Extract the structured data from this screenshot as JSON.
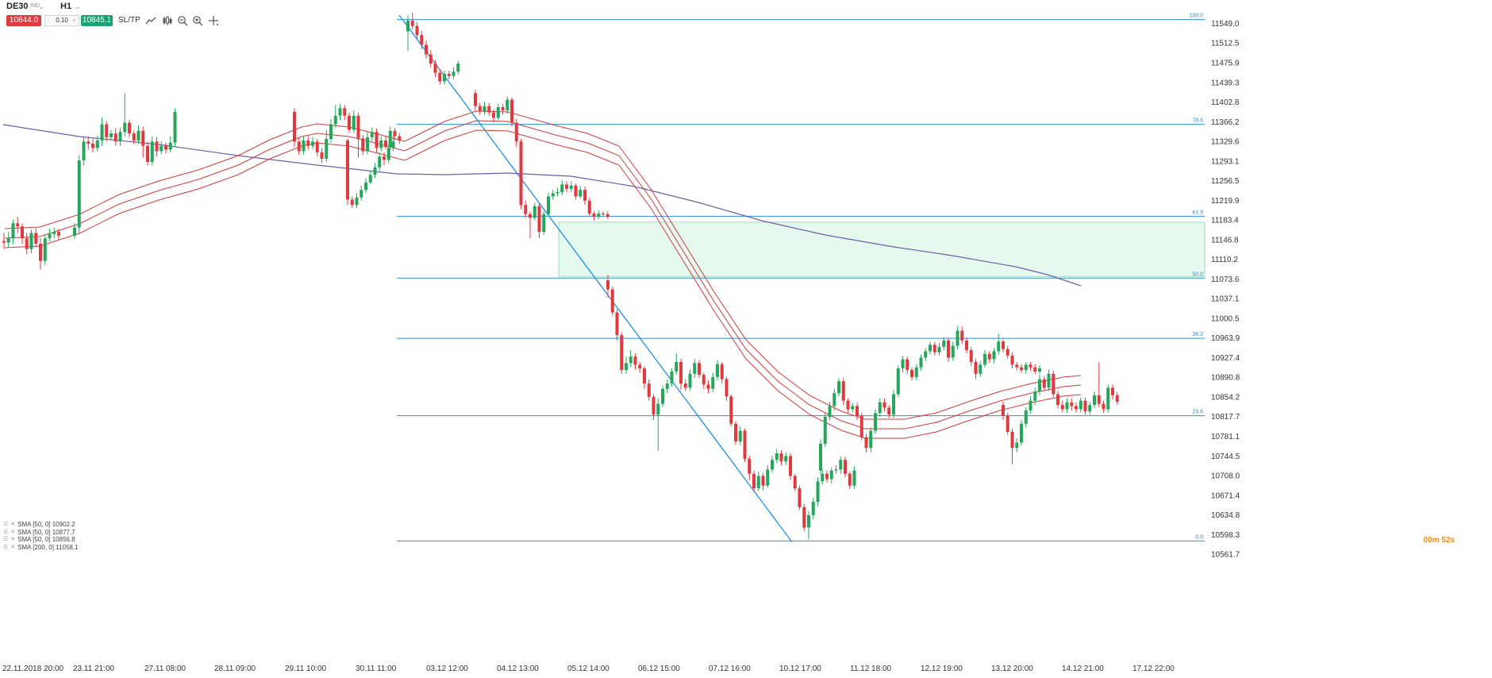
{
  "toolbar": {
    "symbol": "DE30",
    "instrument_type": "IND",
    "timeframe": "H1",
    "sell_price": "10844.0",
    "volume": "0.10",
    "volume_minus": "-",
    "volume_plus": "+",
    "buy_price": "10845.1",
    "sltp_label": "SL/TP",
    "icons": [
      "line-chart-icon",
      "candlestick-icon",
      "zoom-out-icon",
      "zoom-in-icon",
      "crosshair-icon"
    ]
  },
  "colors": {
    "bull": "#26a65b",
    "bear": "#e03a3e",
    "fib": "#2d8fe0",
    "envelope": "#d23a3a",
    "sma200": "#6d5fa8",
    "zone_fill": "#e6f9ef",
    "zone_border": "#9fd9bc",
    "trendline": "#1e90e8"
  },
  "price_axis": {
    "labels": [
      "11549.0",
      "11512.5",
      "11475.9",
      "11439.3",
      "11402.8",
      "11366.2",
      "11329.6",
      "11293.1",
      "11256.5",
      "11219.9",
      "11183.4",
      "11146.8",
      "11110.2",
      "11073.6",
      "11037.1",
      "11000.5",
      "10963.9",
      "10927.4",
      "10890.8",
      "10854.2",
      "10817.7",
      "10781.1",
      "10744.5",
      "10708.0",
      "10671.4",
      "10634.8",
      "10598.3",
      "10561.7"
    ]
  },
  "time_axis": {
    "labels": [
      "22.11.2018 20:00",
      "23.11 21:00",
      "27.11 08:00",
      "28.11 09:00",
      "29.11 10:00",
      "30.11 11:00",
      "03.12 12:00",
      "04.12 13:00",
      "05.12 14:00",
      "06.12 15:00",
      "07.12 16:00",
      "10.12 17:00",
      "11.12 18:00",
      "12.12 19:00",
      "13.12 20:00",
      "14.12 21:00",
      "17.12 22:00"
    ]
  },
  "fib_levels": [
    {
      "label": "100.0",
      "price": 11557.0
    },
    {
      "label": "78.6",
      "price": 11362.0
    },
    {
      "label": "61.9",
      "price": 11191.0
    },
    {
      "label": "50.0",
      "price": 11076.0
    },
    {
      "label": "38.2",
      "price": 10964.0
    },
    {
      "label": "23.6",
      "price": 10820.0
    },
    {
      "label": "0.0",
      "price": 10587.0
    }
  ],
  "zone": {
    "price_top": 11180.0,
    "price_bottom": 11079.0
  },
  "legend": [
    "SMA [50, 0] 10902.2",
    "SMA [50, 0] 10877.7",
    "SMA [50, 0] 10856.8",
    "SMA [200, 0] 11058.1"
  ],
  "timer": "00m 52s",
  "candles": [
    [
      11145,
      11142,
      11160,
      11130
    ],
    [
      11142,
      11150,
      11162,
      11132
    ],
    [
      11150,
      11178,
      11185,
      11140
    ],
    [
      11178,
      11172,
      11190,
      11160
    ],
    [
      11172,
      11150,
      11178,
      11140
    ],
    [
      11150,
      11130,
      11160,
      11120
    ],
    [
      11130,
      11160,
      11166,
      11122
    ],
    [
      11160,
      11140,
      11168,
      11134
    ],
    [
      11140,
      11108,
      11150,
      11092
    ],
    [
      11108,
      11150,
      11156,
      11100
    ],
    [
      11150,
      11158,
      11168,
      11145
    ],
    [
      11158,
      11162,
      11170,
      11150
    ],
    [
      11162,
      11155,
      11168,
      11148
    ],
    [
      11155,
      11170,
      11178,
      11150
    ],
    [
      11170,
      11295,
      11305,
      11160
    ],
    [
      11295,
      11330,
      11340,
      11285
    ],
    [
      11330,
      11326,
      11340,
      11315
    ],
    [
      11326,
      11318,
      11335,
      11310
    ],
    [
      11318,
      11332,
      11340,
      11312
    ],
    [
      11332,
      11362,
      11375,
      11322
    ],
    [
      11362,
      11338,
      11368,
      11330
    ],
    [
      11338,
      11345,
      11352,
      11332
    ],
    [
      11345,
      11330,
      11355,
      11322
    ],
    [
      11330,
      11348,
      11356,
      11322
    ],
    [
      11348,
      11365,
      11420,
      11340
    ],
    [
      11365,
      11345,
      11370,
      11338
    ],
    [
      11345,
      11332,
      11350,
      11325
    ],
    [
      11332,
      11350,
      11360,
      11326
    ],
    [
      11350,
      11322,
      11358,
      11300
    ],
    [
      11322,
      11292,
      11330,
      11285
    ],
    [
      11292,
      11330,
      11340,
      11285
    ],
    [
      11330,
      11312,
      11338,
      11302
    ],
    [
      11312,
      11322,
      11330,
      11306
    ],
    [
      11322,
      11315,
      11328,
      11308
    ],
    [
      11315,
      11328,
      11340,
      11310
    ],
    [
      11328,
      11385,
      11392,
      11320
    ],
    [
      11385,
      11330,
      11392,
      11320
    ],
    [
      11330,
      11312,
      11338,
      11305
    ],
    [
      11312,
      11332,
      11340,
      11306
    ],
    [
      11332,
      11322,
      11340,
      11315
    ],
    [
      11322,
      11330,
      11338,
      11316
    ],
    [
      11330,
      11310,
      11335,
      11302
    ],
    [
      11310,
      11298,
      11318,
      11290
    ],
    [
      11298,
      11335,
      11352,
      11292
    ],
    [
      11335,
      11362,
      11372,
      11328
    ],
    [
      11362,
      11378,
      11398,
      11355
    ],
    [
      11378,
      11392,
      11400,
      11370
    ],
    [
      11392,
      11378,
      11398,
      11370
    ],
    [
      11378,
      11352,
      11384,
      11346
    ],
    [
      11352,
      11378,
      11388,
      11346
    ],
    [
      11378,
      11336,
      11384,
      11300
    ],
    [
      11336,
      11312,
      11342,
      11305
    ],
    [
      11312,
      11338,
      11348,
      11306
    ],
    [
      11338,
      11348,
      11356,
      11330
    ],
    [
      11348,
      11318,
      11354,
      11310
    ],
    [
      11318,
      11332,
      11340,
      11312
    ],
    [
      11332,
      11320,
      11340,
      11316
    ],
    [
      11320,
      11350,
      11358,
      11315
    ],
    [
      11350,
      11340,
      11355,
      11332
    ],
    [
      11340,
      11332,
      11346,
      11326
    ],
    [
      11332,
      11222,
      11336,
      11212
    ],
    [
      11222,
      11212,
      11228,
      11206
    ],
    [
      11212,
      11226,
      11234,
      11206
    ],
    [
      11226,
      11240,
      11248,
      11220
    ],
    [
      11240,
      11254,
      11262,
      11234
    ],
    [
      11254,
      11268,
      11276,
      11250
    ],
    [
      11268,
      11282,
      11290,
      11262
    ],
    [
      11282,
      11302,
      11310,
      11276
    ],
    [
      11302,
      11296,
      11310,
      11286
    ],
    [
      11296,
      11318,
      11326,
      11290
    ],
    [
      11318,
      11330,
      11340,
      11312
    ],
    [
      11535,
      11555,
      11565,
      11498
    ],
    [
      11555,
      11545,
      11570,
      11538
    ],
    [
      11545,
      11528,
      11552,
      11520
    ],
    [
      11528,
      11510,
      11536,
      11502
    ],
    [
      11510,
      11492,
      11518,
      11484
    ],
    [
      11492,
      11475,
      11500,
      11468
    ],
    [
      11475,
      11458,
      11482,
      11450
    ],
    [
      11458,
      11442,
      11465,
      11436
    ],
    [
      11442,
      11456,
      11462,
      11436
    ],
    [
      11456,
      11452,
      11462,
      11446
    ],
    [
      11452,
      11460,
      11468,
      11446
    ],
    [
      11460,
      11475,
      11480,
      11455
    ],
    [
      11420,
      11396,
      11426,
      11388
    ],
    [
      11396,
      11386,
      11402,
      11380
    ],
    [
      11386,
      11396,
      11404,
      11380
    ],
    [
      11396,
      11384,
      11402,
      11378
    ],
    [
      11384,
      11374,
      11390,
      11366
    ],
    [
      11374,
      11394,
      11400,
      11370
    ],
    [
      11394,
      11388,
      11400,
      11380
    ],
    [
      11388,
      11408,
      11414,
      11382
    ],
    [
      11408,
      11365,
      11412,
      11358
    ],
    [
      11365,
      11330,
      11372,
      11320
    ],
    [
      11330,
      11212,
      11335,
      11205
    ],
    [
      11212,
      11195,
      11220,
      11188
    ],
    [
      11195,
      11188,
      11200,
      11150
    ],
    [
      11188,
      11210,
      11216,
      11184
    ],
    [
      11210,
      11162,
      11215,
      11150
    ],
    [
      11162,
      11195,
      11200,
      11156
    ],
    [
      11195,
      11228,
      11235,
      11190
    ],
    [
      11228,
      11234,
      11240,
      11222
    ],
    [
      11234,
      11236,
      11244,
      11228
    ],
    [
      11236,
      11250,
      11258,
      11230
    ],
    [
      11250,
      11242,
      11256,
      11236
    ],
    [
      11242,
      11248,
      11256,
      11236
    ],
    [
      11248,
      11228,
      11252,
      11222
    ],
    [
      11228,
      11240,
      11248,
      11224
    ],
    [
      11240,
      11220,
      11246,
      11212
    ],
    [
      11220,
      11196,
      11226,
      11192
    ],
    [
      11196,
      11190,
      11200,
      11184
    ],
    [
      11190,
      11196,
      11202,
      11186
    ],
    [
      11196,
      11195,
      11200,
      11192
    ],
    [
      11195,
      11190,
      11200,
      11186
    ],
    [
      11072,
      11055,
      11082,
      11040
    ],
    [
      11055,
      11012,
      11060,
      11006
    ],
    [
      11012,
      10970,
      11018,
      10960
    ],
    [
      10970,
      10905,
      10976,
      10898
    ],
    [
      10905,
      10918,
      10930,
      10898
    ],
    [
      10918,
      10930,
      10942,
      10910
    ],
    [
      10930,
      10915,
      10936,
      10906
    ],
    [
      10915,
      10908,
      10920,
      10900
    ],
    [
      10908,
      10880,
      10912,
      10870
    ],
    [
      10880,
      10855,
      10888,
      10848
    ],
    [
      10855,
      10822,
      10860,
      10812
    ],
    [
      10822,
      10842,
      10852,
      10755
    ],
    [
      10842,
      10870,
      10876,
      10836
    ],
    [
      10870,
      10880,
      10888,
      10862
    ],
    [
      10880,
      10902,
      10908,
      10874
    ],
    [
      10902,
      10920,
      10936,
      10896
    ],
    [
      10920,
      10880,
      10926,
      10868
    ],
    [
      10880,
      10872,
      10888,
      10866
    ],
    [
      10872,
      10898,
      10906,
      10866
    ],
    [
      10898,
      10918,
      10926,
      10890
    ],
    [
      10918,
      10896,
      10924,
      10890
    ],
    [
      10896,
      10878,
      10900,
      10870
    ],
    [
      10878,
      10870,
      10886,
      10862
    ],
    [
      10870,
      10892,
      10900,
      10864
    ],
    [
      10892,
      10916,
      10924,
      10886
    ],
    [
      10916,
      10888,
      10920,
      10880
    ],
    [
      10888,
      10856,
      10892,
      10848
    ],
    [
      10856,
      10805,
      10860,
      10800
    ],
    [
      10805,
      10772,
      10810,
      10766
    ],
    [
      10772,
      10792,
      10800,
      10765
    ],
    [
      10792,
      10740,
      10796,
      10734
    ],
    [
      10740,
      10712,
      10746,
      10700
    ],
    [
      10712,
      10685,
      10718,
      10678
    ],
    [
      10685,
      10708,
      10716,
      10680
    ],
    [
      10708,
      10690,
      10714,
      10682
    ],
    [
      10690,
      10720,
      10728,
      10686
    ],
    [
      10720,
      10738,
      10746,
      10714
    ],
    [
      10738,
      10750,
      10758,
      10732
    ],
    [
      10750,
      10735,
      10756,
      10728
    ],
    [
      10735,
      10745,
      10752,
      10728
    ],
    [
      10745,
      10708,
      10750,
      10700
    ],
    [
      10708,
      10685,
      10712,
      10680
    ],
    [
      10685,
      10650,
      10690,
      10645
    ],
    [
      10650,
      10612,
      10656,
      10605
    ],
    [
      10612,
      10635,
      10642,
      10590
    ],
    [
      10635,
      10660,
      10668,
      10628
    ],
    [
      10660,
      10698,
      10706,
      10652
    ],
    [
      10698,
      10712,
      10720,
      10692
    ],
    [
      10712,
      10702,
      10718,
      10696
    ],
    [
      10702,
      10718,
      10724,
      10694
    ],
    [
      10718,
      10720,
      10728,
      10712
    ],
    [
      10720,
      10738,
      10744,
      10712
    ],
    [
      10738,
      10712,
      10744,
      10706
    ],
    [
      10712,
      10690,
      10716,
      10684
    ],
    [
      10690,
      10718,
      10726,
      10684
    ],
    [
      10718,
      10768,
      10776,
      10712
    ],
    [
      10768,
      10818,
      10826,
      10762
    ],
    [
      10818,
      10838,
      10846,
      10812
    ],
    [
      10838,
      10862,
      10870,
      10830
    ],
    [
      10862,
      10884,
      10890,
      10856
    ],
    [
      10884,
      10848,
      10890,
      10840
    ],
    [
      10848,
      10832,
      10852,
      10826
    ],
    [
      10832,
      10838,
      10844,
      10826
    ],
    [
      10838,
      10820,
      10844,
      10812
    ],
    [
      10820,
      10780,
      10826,
      10774
    ],
    [
      10780,
      10760,
      10786,
      10752
    ],
    [
      10760,
      10792,
      10798,
      10752
    ],
    [
      10792,
      10825,
      10832,
      10786
    ],
    [
      10825,
      10845,
      10852,
      10818
    ],
    [
      10845,
      10835,
      10852,
      10828
    ],
    [
      10835,
      10822,
      10840,
      10816
    ],
    [
      10822,
      10860,
      10868,
      10816
    ],
    [
      10860,
      10908,
      10914,
      10855
    ],
    [
      10908,
      10925,
      10932,
      10900
    ],
    [
      10925,
      10905,
      10930,
      10898
    ],
    [
      10905,
      10892,
      10910,
      10886
    ],
    [
      10892,
      10910,
      10916,
      10886
    ],
    [
      10910,
      10928,
      10934,
      10904
    ],
    [
      10928,
      10940,
      10946,
      10922
    ],
    [
      10940,
      10952,
      10958,
      10934
    ],
    [
      10952,
      10938,
      10958,
      10932
    ],
    [
      10938,
      10948,
      10956,
      10932
    ],
    [
      10948,
      10960,
      10966,
      10942
    ],
    [
      10960,
      10928,
      10964,
      10920
    ],
    [
      10928,
      10950,
      10958,
      10922
    ],
    [
      10950,
      10978,
      10986,
      10944
    ],
    [
      10978,
      10960,
      10986,
      10954
    ],
    [
      10960,
      10942,
      10966,
      10936
    ],
    [
      10942,
      10920,
      10948,
      10912
    ],
    [
      10920,
      10898,
      10926,
      10888
    ],
    [
      10898,
      10915,
      10922,
      10892
    ],
    [
      10915,
      10935,
      10942,
      10910
    ],
    [
      10935,
      10925,
      10940,
      10918
    ],
    [
      10925,
      10940,
      10946,
      10918
    ],
    [
      10940,
      10958,
      10972,
      10934
    ],
    [
      10958,
      10944,
      10962,
      10938
    ],
    [
      10944,
      10932,
      10950,
      10926
    ],
    [
      10932,
      10915,
      10938,
      10908
    ],
    [
      10915,
      10910,
      10920,
      10904
    ],
    [
      10910,
      10905,
      10916,
      10900
    ],
    [
      10905,
      10915,
      10920,
      10898
    ],
    [
      10915,
      10910,
      10920,
      10904
    ],
    [
      10910,
      10902,
      10916,
      10898
    ],
    [
      10902,
      10908,
      10914,
      10898
    ],
    [
      10840,
      10820,
      10846,
      10812
    ],
    [
      10820,
      10790,
      10826,
      10784
    ],
    [
      10790,
      10760,
      10796,
      10730
    ],
    [
      10760,
      10770,
      10778,
      10752
    ],
    [
      10770,
      10805,
      10812,
      10764
    ],
    [
      10805,
      10830,
      10836,
      10798
    ],
    [
      10830,
      10848,
      10856,
      10824
    ],
    [
      10848,
      10865,
      10872,
      10840
    ],
    [
      10865,
      10888,
      10896,
      10858
    ],
    [
      10888,
      10872,
      10894,
      10866
    ],
    [
      10872,
      10898,
      10906,
      10866
    ],
    [
      10898,
      10860,
      10904,
      10854
    ],
    [
      10860,
      10840,
      10866,
      10834
    ],
    [
      10840,
      10832,
      10848,
      10826
    ],
    [
      10832,
      10845,
      10852,
      10826
    ],
    [
      10845,
      10838,
      10852,
      10830
    ],
    [
      10838,
      10832,
      10845,
      10826
    ],
    [
      10832,
      10848,
      10854,
      10826
    ],
    [
      10848,
      10828,
      10854,
      10822
    ],
    [
      10828,
      10840,
      10846,
      10822
    ],
    [
      10840,
      10858,
      10865,
      10834
    ],
    [
      10858,
      10842,
      10920,
      10836
    ],
    [
      10842,
      10832,
      10848,
      10826
    ],
    [
      10832,
      10872,
      10878,
      10826
    ],
    [
      10872,
      10858,
      10878,
      10850
    ],
    [
      10858,
      10846,
      10864,
      10840
    ]
  ]
}
